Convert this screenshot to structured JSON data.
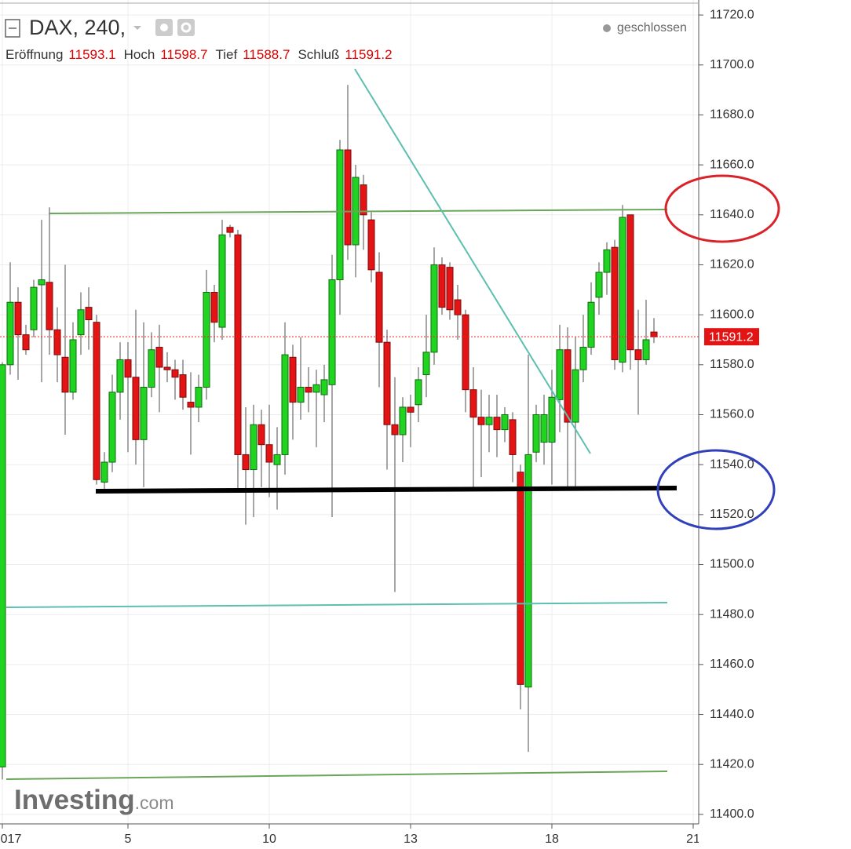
{
  "chart_data": {
    "type": "candlestick",
    "title": "DAX, 240,",
    "status": "geschlossen",
    "ohlc_header": [
      {
        "label": "Eröffnung",
        "value": 11593.1
      },
      {
        "label": "Hoch",
        "value": 11598.7
      },
      {
        "label": "Tief",
        "value": 11588.7
      },
      {
        "label": "Schluß",
        "value": 11591.2
      }
    ],
    "watermark": {
      "brand": "Investing",
      "suffix": ".com"
    },
    "last_price": 11591.2,
    "up_color": "#22d422",
    "down_color": "#e51414",
    "x": [
      0,
      1,
      2,
      3,
      4,
      5,
      6,
      7,
      8,
      9,
      10,
      11,
      12,
      13,
      14,
      15,
      16,
      17,
      18,
      19,
      20,
      21,
      22,
      23,
      24,
      25,
      26,
      27,
      28,
      29,
      30,
      31,
      32,
      33,
      34,
      35,
      36,
      37,
      38,
      39,
      40,
      41,
      42,
      43,
      44,
      45,
      46,
      47,
      48,
      49,
      50,
      51,
      52,
      53,
      54,
      55,
      56,
      57,
      58,
      59,
      60,
      61,
      62,
      63,
      64,
      65,
      66,
      67,
      68,
      69,
      70,
      71,
      72,
      73,
      74,
      75,
      76,
      77,
      78,
      79,
      80,
      81,
      82,
      83
    ],
    "open": [
      11419,
      11580,
      11605,
      11592,
      11594,
      11612,
      11613,
      11594,
      11583,
      11569,
      11592,
      11603,
      11597,
      11533,
      11541,
      11569,
      11582,
      11575,
      11550,
      11571,
      11587,
      11579,
      11578,
      11576,
      11565,
      11563,
      11571,
      11609,
      11595,
      11635,
      11632,
      11544,
      11538,
      11556,
      11548,
      11540,
      11544,
      11583,
      11565,
      11571,
      11569,
      11568,
      11572,
      11614,
      11666,
      11628,
      11652,
      11638,
      11617,
      11589,
      11556,
      11552,
      11563,
      11564,
      11576,
      11585,
      11620,
      11619,
      11606,
      11600,
      11570,
      11559,
      11556,
      11559,
      11554,
      11558,
      11537,
      11451,
      11545,
      11549,
      11549,
      11566,
      11586,
      11557,
      11578,
      11587,
      11607,
      11617,
      11627,
      11581,
      11640,
      11586,
      11582,
      11593.1
    ],
    "high": [
      11581,
      11621,
      11611,
      11596,
      11614,
      11638,
      11643,
      11603,
      11620,
      11597,
      11609,
      11611,
      11600,
      11545,
      11576,
      11589,
      11589,
      11602,
      11597,
      11593,
      11596,
      11585,
      11582,
      11582,
      11577,
      11576,
      11618,
      11612,
      11638,
      11636,
      11634,
      11563,
      11564,
      11562,
      11564,
      11555,
      11597,
      11588,
      11591,
      11579,
      11578,
      11580,
      11624,
      11670,
      11692,
      11660,
      11656,
      11641,
      11625,
      11594,
      11575,
      11567,
      11568,
      11579,
      11600,
      11627,
      11623,
      11621,
      11612,
      11602,
      11579,
      11570,
      11568,
      11568,
      11563,
      11561,
      11540,
      11584,
      11564,
      11568,
      11578,
      11596,
      11595,
      11591,
      11600,
      11613,
      11621,
      11629,
      11630,
      11644,
      11640,
      11602,
      11606,
      11598.7
    ],
    "low": [
      11414,
      11576,
      11574,
      11584,
      11591,
      11573,
      11584,
      11573,
      11552,
      11566,
      11584,
      11586,
      11532,
      11530,
      11537,
      11558,
      11545,
      11540,
      11531,
      11567,
      11561,
      11573,
      11566,
      11562,
      11544,
      11557,
      11566,
      11589,
      11590,
      11631,
      11529,
      11516,
      11519,
      11531,
      11527,
      11522,
      11536,
      11550,
      11558,
      11561,
      11547,
      11557,
      11519,
      11600,
      11622,
      11615,
      11626,
      11613,
      11571,
      11538,
      11489,
      11541,
      11547,
      11557,
      11567,
      11580,
      11600,
      11598,
      11590,
      11561,
      11530,
      11535,
      11545,
      11543,
      11549,
      11533,
      11442,
      11425,
      11541,
      11540,
      11532,
      11553,
      11530,
      11530,
      11573,
      11584,
      11600,
      11608,
      11578,
      11577,
      11578,
      11560,
      11580,
      11588.7
    ],
    "close": [
      11580,
      11605,
      11592,
      11586,
      11611,
      11614,
      11594,
      11584,
      11569,
      11590,
      11602,
      11598,
      11534,
      11541,
      11569,
      11582,
      11575,
      11550,
      11571,
      11586,
      11579,
      11578,
      11575,
      11567,
      11563,
      11571,
      11609,
      11597,
      11632,
      11633,
      11544,
      11538,
      11556,
      11548,
      11541,
      11544,
      11584,
      11565,
      11571,
      11569,
      11572,
      11574,
      11614,
      11666,
      11628,
      11655,
      11640,
      11618,
      11589,
      11556,
      11552,
      11563,
      11561,
      11574,
      11585,
      11620,
      11603,
      11602,
      11600,
      11570,
      11559,
      11556,
      11559,
      11554,
      11560,
      11544,
      11452,
      11544,
      11560,
      11560,
      11567,
      11586,
      11557,
      11578,
      11587,
      11605,
      11617,
      11626,
      11582,
      11639,
      11586,
      11582,
      11590,
      11591.2
    ],
    "xlim": [
      -0.3,
      88.7
    ],
    "xticks": [
      {
        "value": 0,
        "label": "017"
      },
      {
        "value": 16,
        "label": "5"
      },
      {
        "value": 34,
        "label": "10"
      },
      {
        "value": 52,
        "label": "13"
      },
      {
        "value": 70,
        "label": "18"
      },
      {
        "value": 88,
        "label": "21"
      }
    ],
    "ylim": [
      11396.2,
      11726
    ],
    "yticks": [
      {
        "value": 11400,
        "label": "11400.0"
      },
      {
        "value": 11420,
        "label": "11420.0"
      },
      {
        "value": 11440,
        "label": "11440.0"
      },
      {
        "value": 11460,
        "label": "11460.0"
      },
      {
        "value": 11480,
        "label": "11480.0"
      },
      {
        "value": 11500,
        "label": "11500.0"
      },
      {
        "value": 11520,
        "label": "11520.0"
      },
      {
        "value": 11540,
        "label": "11540.0"
      },
      {
        "value": 11560,
        "label": "11560.0"
      },
      {
        "value": 11580,
        "label": "11580.0"
      },
      {
        "value": 11600,
        "label": "11600.0"
      },
      {
        "value": 11620,
        "label": "11620.0"
      },
      {
        "value": 11640,
        "label": "11640.0"
      },
      {
        "value": 11660,
        "label": "11660.0"
      },
      {
        "value": 11680,
        "label": "11680.0"
      },
      {
        "value": 11700,
        "label": "11700.0"
      },
      {
        "value": 11720,
        "label": "11720.0"
      }
    ],
    "grid": true
  }
}
